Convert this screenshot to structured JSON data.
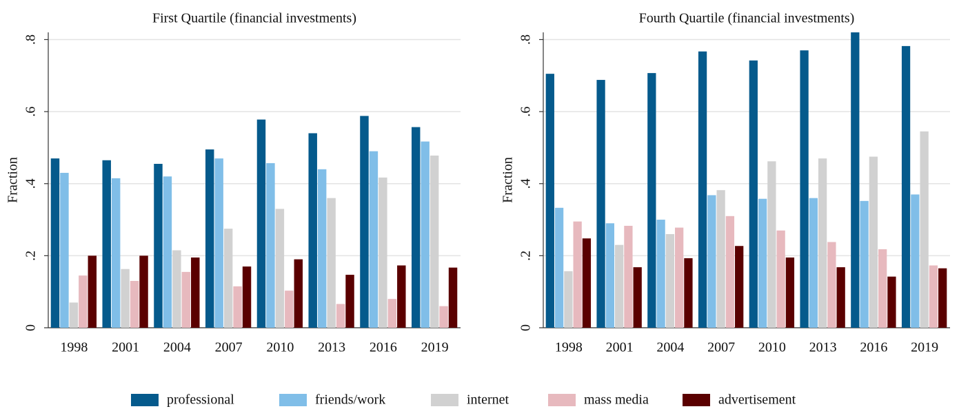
{
  "chart_data": [
    {
      "type": "bar",
      "title": "First Quartile (financial investments)",
      "ylabel": "Fraction",
      "categories": [
        "1998",
        "2001",
        "2004",
        "2007",
        "2010",
        "2013",
        "2016",
        "2019"
      ],
      "series": [
        {
          "values": [
            0.47,
            0.465,
            0.455,
            0.495,
            0.578,
            0.54,
            0.588,
            0.557
          ]
        },
        {
          "values": [
            0.43,
            0.415,
            0.42,
            0.47,
            0.457,
            0.44,
            0.49,
            0.517
          ]
        },
        {
          "values": [
            0.07,
            0.163,
            0.215,
            0.275,
            0.33,
            0.36,
            0.417,
            0.478
          ]
        },
        {
          "values": [
            0.145,
            0.13,
            0.155,
            0.115,
            0.103,
            0.066,
            0.08,
            0.06
          ]
        },
        {
          "values": [
            0.2,
            0.2,
            0.195,
            0.17,
            0.19,
            0.147,
            0.173,
            0.167
          ]
        }
      ],
      "ylim": [
        0,
        0.82
      ],
      "yticks": [
        0,
        {
          "value": 0.2,
          "label": ".2"
        },
        {
          "value": 0.4,
          "label": ".4"
        },
        {
          "value": 0.6,
          "label": ".6"
        },
        {
          "value": 0.8,
          "label": ".8"
        }
      ],
      "grid": true
    },
    {
      "type": "bar",
      "title": "Fourth Quartile (financial investments)",
      "ylabel": "Fraction",
      "categories": [
        "1998",
        "2001",
        "2004",
        "2007",
        "2010",
        "2013",
        "2016",
        "2019"
      ],
      "series": [
        {
          "values": [
            0.705,
            0.688,
            0.707,
            0.767,
            0.742,
            0.77,
            0.82,
            0.782
          ]
        },
        {
          "values": [
            0.333,
            0.29,
            0.3,
            0.368,
            0.358,
            0.36,
            0.352,
            0.37
          ]
        },
        {
          "values": [
            0.157,
            0.23,
            0.26,
            0.382,
            0.462,
            0.47,
            0.475,
            0.545
          ]
        },
        {
          "values": [
            0.295,
            0.283,
            0.278,
            0.31,
            0.27,
            0.238,
            0.218,
            0.173
          ]
        },
        {
          "values": [
            0.248,
            0.168,
            0.193,
            0.227,
            0.195,
            0.168,
            0.142,
            0.165
          ]
        }
      ],
      "ylim": [
        0,
        0.82
      ],
      "yticks": [
        0,
        {
          "value": 0.2,
          "label": ".2"
        },
        {
          "value": 0.4,
          "label": ".4"
        },
        {
          "value": 0.6,
          "label": ".6"
        },
        {
          "value": 0.8,
          "label": ".8"
        }
      ],
      "grid": true
    }
  ],
  "legend": [
    {
      "name": "professional",
      "color": "#055a8c"
    },
    {
      "name": "friends/work",
      "color": "#80bee8"
    },
    {
      "name": "internet",
      "color": "#d1d1d1"
    },
    {
      "name": "mass media",
      "color": "#e7b9be"
    },
    {
      "name": "advertisement",
      "color": "#5a0000"
    }
  ]
}
